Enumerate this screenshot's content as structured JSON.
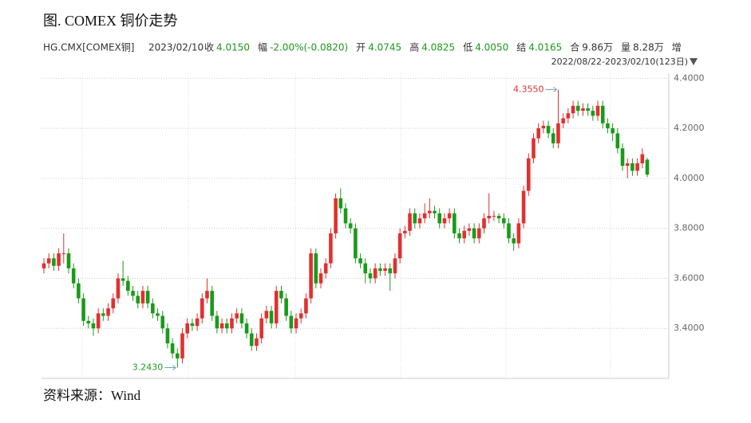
{
  "header": {
    "title": "图. COMEX 铜价走势",
    "symbol": "HG.CMX[COMEX铜]",
    "date": "2023/02/10",
    "quote": [
      {
        "label": "收",
        "value": "4.0150",
        "color": "#1a9a1a"
      },
      {
        "label": "幅",
        "value": "-2.00%(-0.0820)",
        "color": "#1a9a1a"
      },
      {
        "label": "开",
        "value": "4.0745",
        "color": "#1a9a1a"
      },
      {
        "label": "高",
        "value": "4.0825",
        "color": "#1a9a1a"
      },
      {
        "label": "低",
        "value": "4.0050",
        "color": "#1a9a1a"
      },
      {
        "label": "结",
        "value": "4.0165",
        "color": "#1a9a1a"
      },
      {
        "label": "合",
        "value": "9.86万",
        "color": "#333333"
      },
      {
        "label": "量",
        "value": "8.28万",
        "color": "#333333"
      }
    ],
    "more": "增",
    "range": "2022/08/22-2023/02/10(123日)"
  },
  "chart_data": {
    "type": "candlestick",
    "up_color": "#e03030",
    "down_color": "#1a9a1a",
    "grid": true,
    "ylim": [
      3.2,
      4.42
    ],
    "yticks": [
      {
        "value": 3.4,
        "label": "3.4000"
      },
      {
        "value": 3.6,
        "label": "3.6000"
      },
      {
        "value": 3.8,
        "label": "3.8000"
      },
      {
        "value": 4.0,
        "label": "4.0000"
      },
      {
        "value": 4.2,
        "label": "4.2000"
      },
      {
        "value": 4.4,
        "label": "4.4000"
      }
    ],
    "annotations": [
      {
        "value": 4.355,
        "label": "4.3550",
        "color": "#e03030"
      },
      {
        "value": 3.243,
        "label": "3.2430",
        "color": "#1a9a1a"
      }
    ],
    "open": [
      3.64,
      3.66,
      3.68,
      3.65,
      3.7,
      3.7,
      3.64,
      3.58,
      3.52,
      3.43,
      3.42,
      3.4,
      3.46,
      3.45,
      3.48,
      3.52,
      3.6,
      3.59,
      3.55,
      3.53,
      3.5,
      3.55,
      3.5,
      3.46,
      3.45,
      3.4,
      3.34,
      3.3,
      3.28,
      3.38,
      3.42,
      3.41,
      3.44,
      3.52,
      3.55,
      3.45,
      3.4,
      3.42,
      3.4,
      3.44,
      3.46,
      3.42,
      3.38,
      3.33,
      3.36,
      3.44,
      3.47,
      3.42,
      3.55,
      3.52,
      3.45,
      3.4,
      3.44,
      3.46,
      3.52,
      3.7,
      3.58,
      3.62,
      3.66,
      3.78,
      3.92,
      3.88,
      3.82,
      3.8,
      3.68,
      3.66,
      3.62,
      3.6,
      3.64,
      3.63,
      3.64,
      3.62,
      3.68,
      3.78,
      3.79,
      3.86,
      3.82,
      3.84,
      3.86,
      3.87,
      3.86,
      3.82,
      3.84,
      3.86,
      3.78,
      3.76,
      3.79,
      3.8,
      3.76,
      3.8,
      3.84,
      3.85,
      3.85,
      3.84,
      3.82,
      3.76,
      3.74,
      3.82,
      3.95,
      4.08,
      4.16,
      4.2,
      4.21,
      4.18,
      4.14,
      4.22,
      4.24,
      4.26,
      4.29,
      4.27,
      4.28,
      4.27,
      4.25,
      4.29,
      4.22,
      4.2,
      4.18,
      4.12,
      4.05,
      4.06,
      4.03,
      4.06,
      4.0745
    ],
    "high": [
      3.68,
      3.7,
      3.7,
      3.72,
      3.78,
      3.72,
      3.66,
      3.6,
      3.54,
      3.45,
      3.44,
      3.48,
      3.48,
      3.5,
      3.54,
      3.62,
      3.67,
      3.61,
      3.57,
      3.55,
      3.57,
      3.57,
      3.52,
      3.48,
      3.47,
      3.42,
      3.36,
      3.32,
      3.4,
      3.44,
      3.44,
      3.46,
      3.54,
      3.6,
      3.57,
      3.47,
      3.44,
      3.44,
      3.46,
      3.48,
      3.48,
      3.44,
      3.4,
      3.38,
      3.46,
      3.49,
      3.49,
      3.57,
      3.57,
      3.54,
      3.47,
      3.46,
      3.48,
      3.54,
      3.72,
      3.72,
      3.64,
      3.68,
      3.8,
      3.94,
      3.96,
      3.9,
      3.84,
      3.82,
      3.7,
      3.68,
      3.64,
      3.66,
      3.66,
      3.66,
      3.66,
      3.7,
      3.8,
      3.81,
      3.88,
      3.88,
      3.86,
      3.9,
      3.92,
      3.89,
      3.88,
      3.86,
      3.88,
      3.88,
      3.8,
      3.81,
      3.82,
      3.82,
      3.82,
      3.86,
      3.94,
      3.87,
      3.86,
      3.86,
      3.84,
      3.78,
      3.84,
      3.97,
      4.1,
      4.18,
      4.22,
      4.23,
      4.23,
      4.2,
      4.355,
      4.26,
      4.28,
      4.31,
      4.31,
      4.3,
      4.3,
      4.29,
      4.31,
      4.31,
      4.24,
      4.22,
      4.2,
      4.14,
      4.08,
      4.08,
      4.08,
      4.12,
      4.0825
    ],
    "low": [
      3.62,
      3.64,
      3.63,
      3.63,
      3.66,
      3.62,
      3.56,
      3.5,
      3.41,
      3.4,
      3.37,
      3.38,
      3.43,
      3.43,
      3.46,
      3.5,
      3.57,
      3.53,
      3.51,
      3.48,
      3.48,
      3.48,
      3.44,
      3.43,
      3.38,
      3.32,
      3.28,
      3.243,
      3.26,
      3.36,
      3.39,
      3.39,
      3.42,
      3.5,
      3.43,
      3.38,
      3.38,
      3.38,
      3.38,
      3.42,
      3.4,
      3.36,
      3.31,
      3.31,
      3.34,
      3.42,
      3.4,
      3.4,
      3.5,
      3.43,
      3.38,
      3.38,
      3.42,
      3.44,
      3.5,
      3.56,
      3.56,
      3.6,
      3.64,
      3.76,
      3.86,
      3.8,
      3.78,
      3.66,
      3.64,
      3.58,
      3.58,
      3.58,
      3.61,
      3.61,
      3.55,
      3.6,
      3.66,
      3.76,
      3.77,
      3.8,
      3.8,
      3.82,
      3.84,
      3.84,
      3.8,
      3.8,
      3.82,
      3.76,
      3.74,
      3.74,
      3.77,
      3.74,
      3.74,
      3.78,
      3.82,
      3.83,
      3.82,
      3.8,
      3.74,
      3.71,
      3.72,
      3.8,
      3.93,
      4.06,
      4.14,
      4.18,
      4.16,
      4.12,
      4.12,
      4.2,
      4.22,
      4.24,
      4.25,
      4.25,
      4.25,
      4.23,
      4.23,
      4.2,
      4.18,
      4.15,
      4.1,
      4.03,
      4.0,
      4.01,
      4.01,
      4.04,
      4.005
    ],
    "close": [
      3.66,
      3.68,
      3.65,
      3.7,
      3.7,
      3.64,
      3.58,
      3.52,
      3.43,
      3.42,
      3.4,
      3.46,
      3.45,
      3.48,
      3.52,
      3.6,
      3.59,
      3.55,
      3.53,
      3.5,
      3.55,
      3.5,
      3.46,
      3.45,
      3.4,
      3.34,
      3.3,
      3.28,
      3.38,
      3.42,
      3.41,
      3.44,
      3.52,
      3.55,
      3.45,
      3.4,
      3.42,
      3.4,
      3.44,
      3.46,
      3.42,
      3.38,
      3.33,
      3.36,
      3.44,
      3.47,
      3.42,
      3.55,
      3.52,
      3.45,
      3.4,
      3.44,
      3.46,
      3.52,
      3.7,
      3.58,
      3.62,
      3.66,
      3.78,
      3.92,
      3.88,
      3.82,
      3.8,
      3.68,
      3.66,
      3.62,
      3.6,
      3.64,
      3.63,
      3.64,
      3.62,
      3.68,
      3.78,
      3.79,
      3.86,
      3.82,
      3.84,
      3.86,
      3.87,
      3.86,
      3.82,
      3.84,
      3.86,
      3.78,
      3.76,
      3.79,
      3.8,
      3.76,
      3.8,
      3.84,
      3.85,
      3.85,
      3.84,
      3.82,
      3.76,
      3.74,
      3.82,
      3.95,
      4.08,
      4.16,
      4.2,
      4.21,
      4.18,
      4.14,
      4.22,
      4.24,
      4.26,
      4.29,
      4.27,
      4.28,
      4.27,
      4.25,
      4.29,
      4.22,
      4.2,
      4.18,
      4.12,
      4.05,
      4.06,
      4.03,
      4.06,
      4.0965,
      4.015
    ]
  },
  "source": "资料来源：Wind"
}
